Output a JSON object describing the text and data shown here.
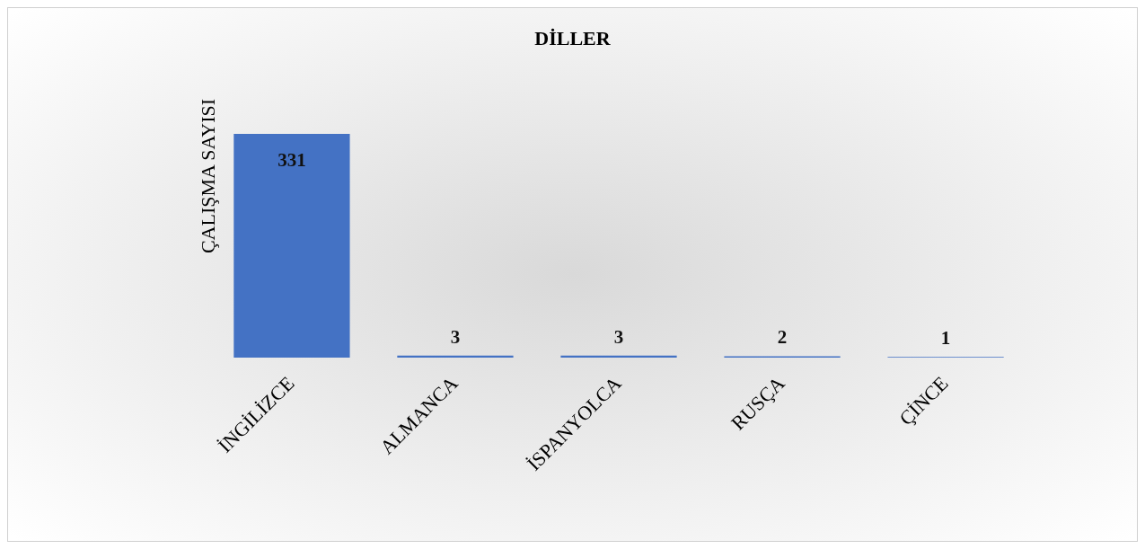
{
  "chart_data": {
    "type": "bar",
    "title": "DİLLER",
    "ylabel": "ÇALIŞMA SAYISI",
    "categories": [
      "İNGİLİZCE",
      "ALMANCA",
      "İSPANYOLCA",
      "RUSÇA",
      "ÇİNCE"
    ],
    "values": [
      331,
      3,
      3,
      2,
      1
    ],
    "color": "#4472c4",
    "data_labels": true
  }
}
